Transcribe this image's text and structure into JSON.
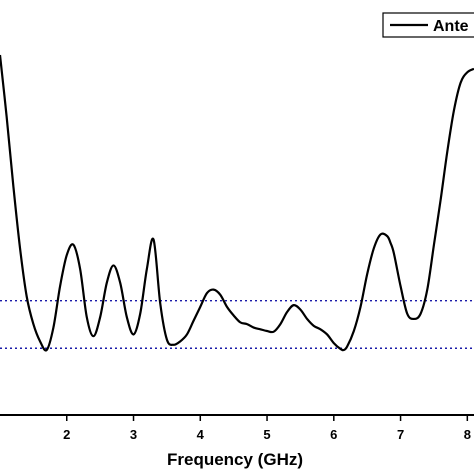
{
  "chart_data": {
    "type": "line",
    "xlabel": "Frequency (GHz)",
    "ylabel": "",
    "xlim": [
      1.0,
      8.1
    ],
    "ylim": [
      0,
      1
    ],
    "grid": false,
    "legend": {
      "placement": "top-right",
      "entries": [
        "Ante"
      ]
    },
    "x_ticks": [
      2,
      3,
      4,
      5,
      6,
      7,
      8
    ],
    "reference_lines": [
      {
        "style": "dotted",
        "color": "#1a1aa8",
        "y": 0.288
      },
      {
        "style": "dotted",
        "color": "#1a1aa8",
        "y": 0.15
      }
    ],
    "series": [
      {
        "name": "Ante",
        "color": "#000000",
        "x": [
          1.0,
          1.1,
          1.2,
          1.3,
          1.4,
          1.5,
          1.6,
          1.7,
          1.8,
          1.9,
          2.0,
          2.1,
          2.2,
          2.3,
          2.4,
          2.5,
          2.6,
          2.7,
          2.8,
          2.9,
          3.0,
          3.1,
          3.2,
          3.3,
          3.4,
          3.5,
          3.6,
          3.7,
          3.8,
          3.9,
          4.0,
          4.1,
          4.2,
          4.3,
          4.4,
          4.5,
          4.6,
          4.7,
          4.8,
          4.9,
          5.0,
          5.1,
          5.2,
          5.3,
          5.4,
          5.5,
          5.6,
          5.7,
          5.8,
          5.9,
          6.0,
          6.1,
          6.15,
          6.2,
          6.3,
          6.4,
          6.5,
          6.6,
          6.7,
          6.8,
          6.85,
          6.9,
          7.0,
          7.1,
          7.2,
          7.3,
          7.4,
          7.5,
          7.6,
          7.7,
          7.8,
          7.9,
          8.0,
          8.1
        ],
        "y": [
          1.0,
          0.82,
          0.62,
          0.44,
          0.3,
          0.22,
          0.17,
          0.145,
          0.21,
          0.33,
          0.42,
          0.45,
          0.38,
          0.24,
          0.185,
          0.24,
          0.34,
          0.39,
          0.34,
          0.24,
          0.19,
          0.25,
          0.38,
          0.465,
          0.28,
          0.175,
          0.16,
          0.17,
          0.19,
          0.23,
          0.27,
          0.31,
          0.32,
          0.305,
          0.27,
          0.245,
          0.225,
          0.22,
          0.21,
          0.205,
          0.2,
          0.198,
          0.22,
          0.255,
          0.275,
          0.262,
          0.235,
          0.215,
          0.205,
          0.19,
          0.165,
          0.148,
          0.145,
          0.155,
          0.2,
          0.27,
          0.365,
          0.44,
          0.48,
          0.475,
          0.455,
          0.425,
          0.33,
          0.25,
          0.235,
          0.25,
          0.32,
          0.45,
          0.58,
          0.72,
          0.84,
          0.92,
          0.95,
          0.96
        ]
      }
    ]
  }
}
